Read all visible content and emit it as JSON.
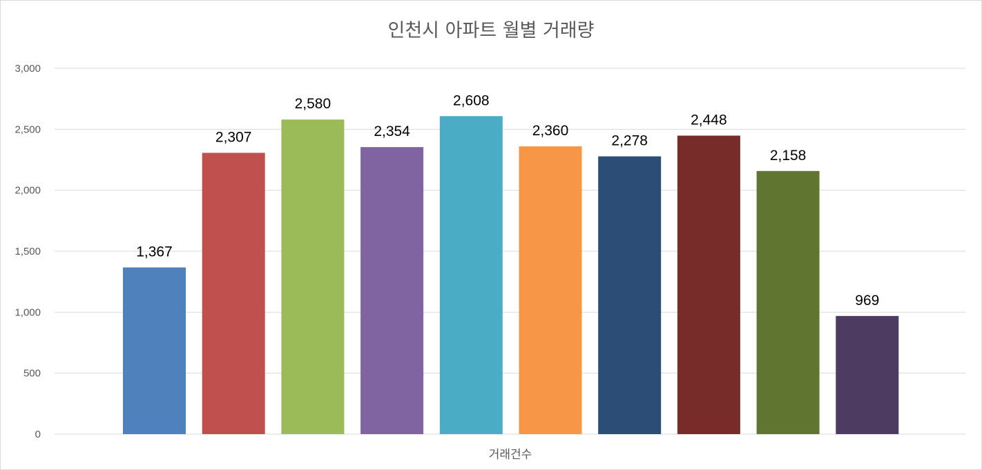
{
  "chart_data": {
    "type": "bar",
    "title": "인천시 아파트 월별 거래량",
    "xlabel": "거래건수",
    "ylabel": "",
    "ylim": [
      0,
      3000
    ],
    "yticks": [
      0,
      500,
      1000,
      1500,
      2000,
      2500,
      3000
    ],
    "ytick_labels": [
      "0",
      "500",
      "1,000",
      "1,500",
      "2,000",
      "2,500",
      "3,000"
    ],
    "grid": true,
    "legend": "none",
    "series": [
      {
        "value": 1367,
        "label": "1,367",
        "color": "#4F81BD"
      },
      {
        "value": 2307,
        "label": "2,307",
        "color": "#C0504D"
      },
      {
        "value": 2580,
        "label": "2,580",
        "color": "#9BBB59"
      },
      {
        "value": 2354,
        "label": "2,354",
        "color": "#8064A2"
      },
      {
        "value": 2608,
        "label": "2,608",
        "color": "#4BACC6"
      },
      {
        "value": 2360,
        "label": "2,360",
        "color": "#F79646"
      },
      {
        "value": 2278,
        "label": "2,278",
        "color": "#2C4D75"
      },
      {
        "value": 2448,
        "label": "2,448",
        "color": "#772C2A"
      },
      {
        "value": 2158,
        "label": "2,158",
        "color": "#5F7530"
      },
      {
        "value": 969,
        "label": "969",
        "color": "#4D3B62"
      }
    ]
  }
}
